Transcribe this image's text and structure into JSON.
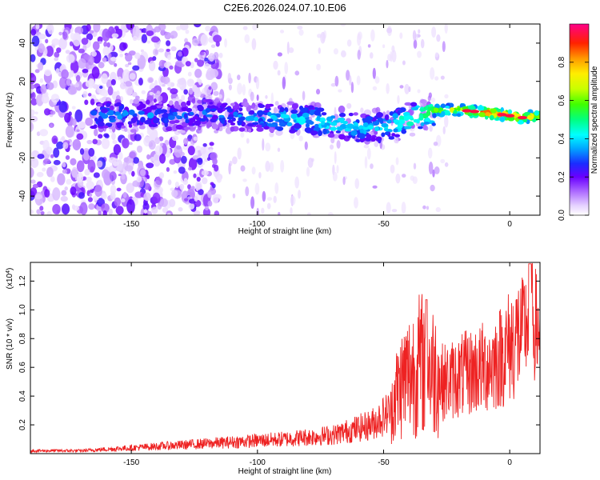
{
  "title": "C2E6.2026.024.07.10.E06",
  "chart_data": [
    {
      "type": "heatmap",
      "xlabel": "Height of straight line (km)",
      "ylabel": "Frequency (Hz)",
      "xlim": [
        -190,
        12
      ],
      "ylim": [
        -50,
        50
      ],
      "xticks": [
        -150,
        -100,
        -50,
        0
      ],
      "xtick_labels": [
        "-150",
        "-100",
        "-50",
        "0"
      ],
      "yticks": [
        -40,
        -20,
        0,
        20,
        40
      ],
      "ytick_labels": [
        "-40",
        "-20",
        "0",
        "20",
        "40"
      ],
      "colorbar": {
        "label": "Normalized spectral amplitude",
        "range": [
          0.0,
          1.0
        ],
        "ticks": [
          0.0,
          0.2,
          0.4,
          0.6,
          0.8
        ],
        "tick_labels": [
          "0.0",
          "0.2",
          "0.4",
          "0.6",
          "0.8"
        ]
      },
      "signal_track": {
        "description_points": [
          {
            "x": -163,
            "y": 2,
            "amp": 0.35
          },
          {
            "x": -150,
            "y": 3,
            "amp": 0.3
          },
          {
            "x": -140,
            "y": 2,
            "amp": 0.3
          },
          {
            "x": -130,
            "y": 2,
            "amp": 0.28
          },
          {
            "x": -120,
            "y": 3,
            "amp": 0.3
          },
          {
            "x": -110,
            "y": 2,
            "amp": 0.3
          },
          {
            "x": -100,
            "y": 1,
            "amp": 0.35
          },
          {
            "x": -90,
            "y": 1,
            "amp": 0.4
          },
          {
            "x": -80,
            "y": 0,
            "amp": 0.4
          },
          {
            "x": -70,
            "y": -2,
            "amp": 0.45
          },
          {
            "x": -60,
            "y": -4,
            "amp": 0.4
          },
          {
            "x": -50,
            "y": -4,
            "amp": 0.4
          },
          {
            "x": -42,
            "y": -1,
            "amp": 0.5
          },
          {
            "x": -35,
            "y": 3,
            "amp": 0.55
          },
          {
            "x": -28,
            "y": 5,
            "amp": 0.65
          },
          {
            "x": -20,
            "y": 5,
            "amp": 0.7
          },
          {
            "x": -12,
            "y": 4,
            "amp": 0.85
          },
          {
            "x": -5,
            "y": 3,
            "amp": 0.9
          },
          {
            "x": 5,
            "y": 1,
            "amp": 0.8
          },
          {
            "x": 12,
            "y": 2,
            "amp": 0.75
          }
        ]
      }
    },
    {
      "type": "line",
      "xlabel": "Height of straight line (km)",
      "ylabel": "SNR (10 * v/v)",
      "y_multiplier_label": "(x10",
      "y_multiplier_exp": "4",
      "xlim": [
        -190,
        12
      ],
      "ylim": [
        0,
        1.33
      ],
      "xticks": [
        -150,
        -100,
        -50,
        0
      ],
      "xtick_labels": [
        "-150",
        "-100",
        "-50",
        "0"
      ],
      "yticks": [
        0.2,
        0.4,
        0.6,
        0.8,
        1.0,
        1.2
      ],
      "ytick_labels": [
        "0.2",
        "0.4",
        "0.6",
        "0.8",
        "1.0",
        "1.2"
      ],
      "series": [
        {
          "color": "#ee2222",
          "envelope_x": [
            -190,
            -170,
            -150,
            -130,
            -110,
            -90,
            -70,
            -55,
            -47,
            -42,
            -35,
            -30,
            -25,
            -18,
            -10,
            -5,
            0,
            5,
            8,
            10,
            12
          ],
          "envelope_y": [
            0.02,
            0.02,
            0.04,
            0.06,
            0.08,
            0.1,
            0.13,
            0.2,
            0.3,
            0.45,
            0.55,
            0.5,
            0.5,
            0.55,
            0.6,
            0.65,
            0.75,
            0.85,
            0.95,
            0.9,
            0.85
          ]
        }
      ]
    }
  ]
}
